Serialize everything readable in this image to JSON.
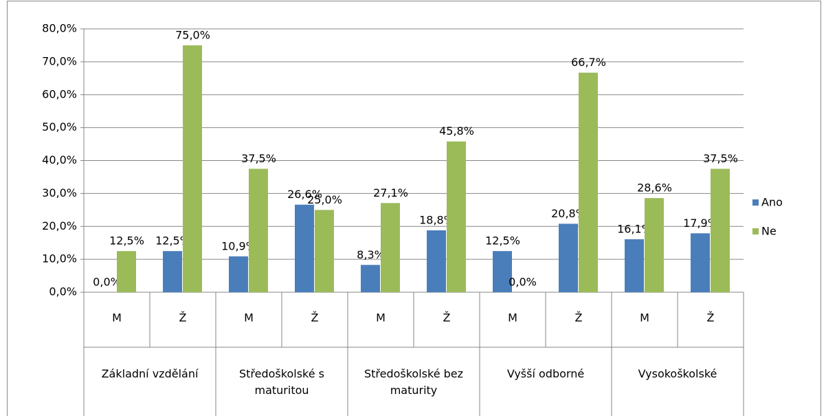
{
  "chart_data": {
    "type": "bar",
    "categories": [
      "M",
      "Ž",
      "M",
      "Ž",
      "M",
      "Ž",
      "M",
      "Ž",
      "M",
      "Ž"
    ],
    "groups": [
      "Základní vzdělání",
      "Středoškolské s maturitou",
      "Středoškolské bez maturity",
      "Vyšší odborné",
      "Vysokoškolské"
    ],
    "series": [
      {
        "name": "Ano",
        "color": "#4a7ebb",
        "values": [
          0.0,
          12.5,
          10.9,
          26.6,
          8.3,
          18.8,
          12.5,
          20.8,
          16.1,
          17.9
        ],
        "value_labels": [
          "0,0%",
          "12,5%",
          "10,9%",
          "26,6%",
          "8,3%",
          "18,8%",
          "12,5%",
          "20,8%",
          "16,1%",
          "17,9%"
        ]
      },
      {
        "name": "Ne",
        "color": "#9bbb59",
        "values": [
          12.5,
          75.0,
          37.5,
          25.0,
          27.1,
          45.8,
          0.0,
          66.7,
          28.6,
          37.5
        ],
        "value_labels": [
          "12,5%",
          "75,0%",
          "37,5%",
          "25,0%",
          "27,1%",
          "45,8%",
          "0,0%",
          "66,7%",
          "28,6%",
          "37,5%"
        ]
      }
    ],
    "ylim": [
      0,
      80
    ],
    "yticks": [
      {
        "value": 0,
        "label": "0,0%"
      },
      {
        "value": 10,
        "label": "10,0%"
      },
      {
        "value": 20,
        "label": "20,0%"
      },
      {
        "value": 30,
        "label": "30,0%"
      },
      {
        "value": 40,
        "label": "40,0%"
      },
      {
        "value": 50,
        "label": "50,0%"
      },
      {
        "value": 60,
        "label": "60,0%"
      },
      {
        "value": 70,
        "label": "70,0%"
      },
      {
        "value": 80,
        "label": "80,0%"
      }
    ],
    "grid": true,
    "legend": "right"
  }
}
